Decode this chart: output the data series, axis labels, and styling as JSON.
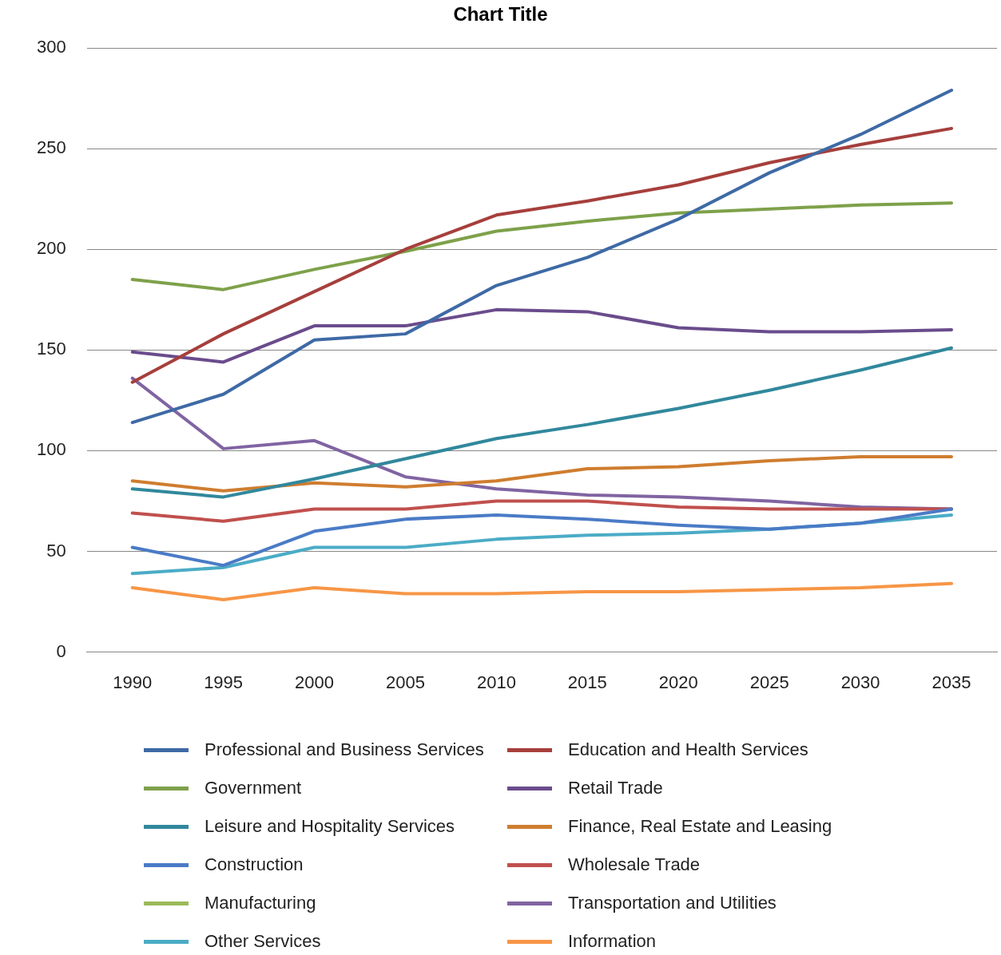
{
  "chart_data": {
    "type": "line",
    "title": "Chart Title",
    "categories": [
      "1990",
      "1995",
      "2000",
      "2005",
      "2010",
      "2015",
      "2020",
      "2025",
      "2030",
      "2035"
    ],
    "ylim": [
      0,
      300
    ],
    "yticks": [
      0,
      50,
      100,
      150,
      200,
      250,
      300
    ],
    "grid": "y",
    "legend": "bottom",
    "marker": "none",
    "line_style": "solid",
    "series": [
      {
        "name": "Professional and Business Services",
        "color": "#3e6aa5",
        "values": [
          114,
          128,
          155,
          158,
          182,
          196,
          215,
          238,
          257,
          279
        ]
      },
      {
        "name": "Education and Health Services",
        "color": "#a63f3c",
        "values": [
          134,
          158,
          179,
          200,
          217,
          224,
          232,
          243,
          252,
          260
        ]
      },
      {
        "name": "Government",
        "color": "#7ea14a",
        "values": [
          185,
          180,
          190,
          199,
          209,
          214,
          218,
          220,
          222,
          223
        ]
      },
      {
        "name": "Retail Trade",
        "color": "#6a4c8c",
        "values": [
          149,
          144,
          162,
          162,
          170,
          169,
          161,
          159,
          159,
          160
        ]
      },
      {
        "name": "Leisure and Hospitality Services",
        "color": "#31889c",
        "values": [
          81,
          77,
          86,
          96,
          106,
          113,
          121,
          130,
          140,
          151
        ]
      },
      {
        "name": "Finance, Real Estate and Leasing",
        "color": "#cf7d2f",
        "values": [
          85,
          80,
          84,
          82,
          85,
          91,
          92,
          95,
          97,
          97
        ]
      },
      {
        "name": "Construction",
        "color": "#4a7bc6",
        "values": [
          52,
          43,
          60,
          66,
          68,
          66,
          63,
          61,
          64,
          71
        ]
      },
      {
        "name": "Wholesale Trade",
        "color": "#c0504d",
        "values": [
          69,
          65,
          71,
          71,
          75,
          75,
          72,
          71,
          71,
          71
        ]
      },
      {
        "name": "Manufacturing",
        "color": "#9bbb59",
        "values": [
          null,
          null,
          null,
          null,
          null,
          null,
          null,
          null,
          null,
          null
        ]
      },
      {
        "name": "Transportation and Utilities",
        "color": "#8064a2",
        "values": [
          136,
          101,
          105,
          87,
          81,
          78,
          77,
          75,
          72,
          71
        ]
      },
      {
        "name": "Other Services",
        "color": "#4bacc6",
        "values": [
          39,
          42,
          52,
          52,
          56,
          58,
          59,
          61,
          64,
          68
        ]
      },
      {
        "name": "Information",
        "color": "#f79646",
        "values": [
          32,
          26,
          32,
          29,
          29,
          30,
          30,
          31,
          32,
          34
        ]
      }
    ]
  }
}
